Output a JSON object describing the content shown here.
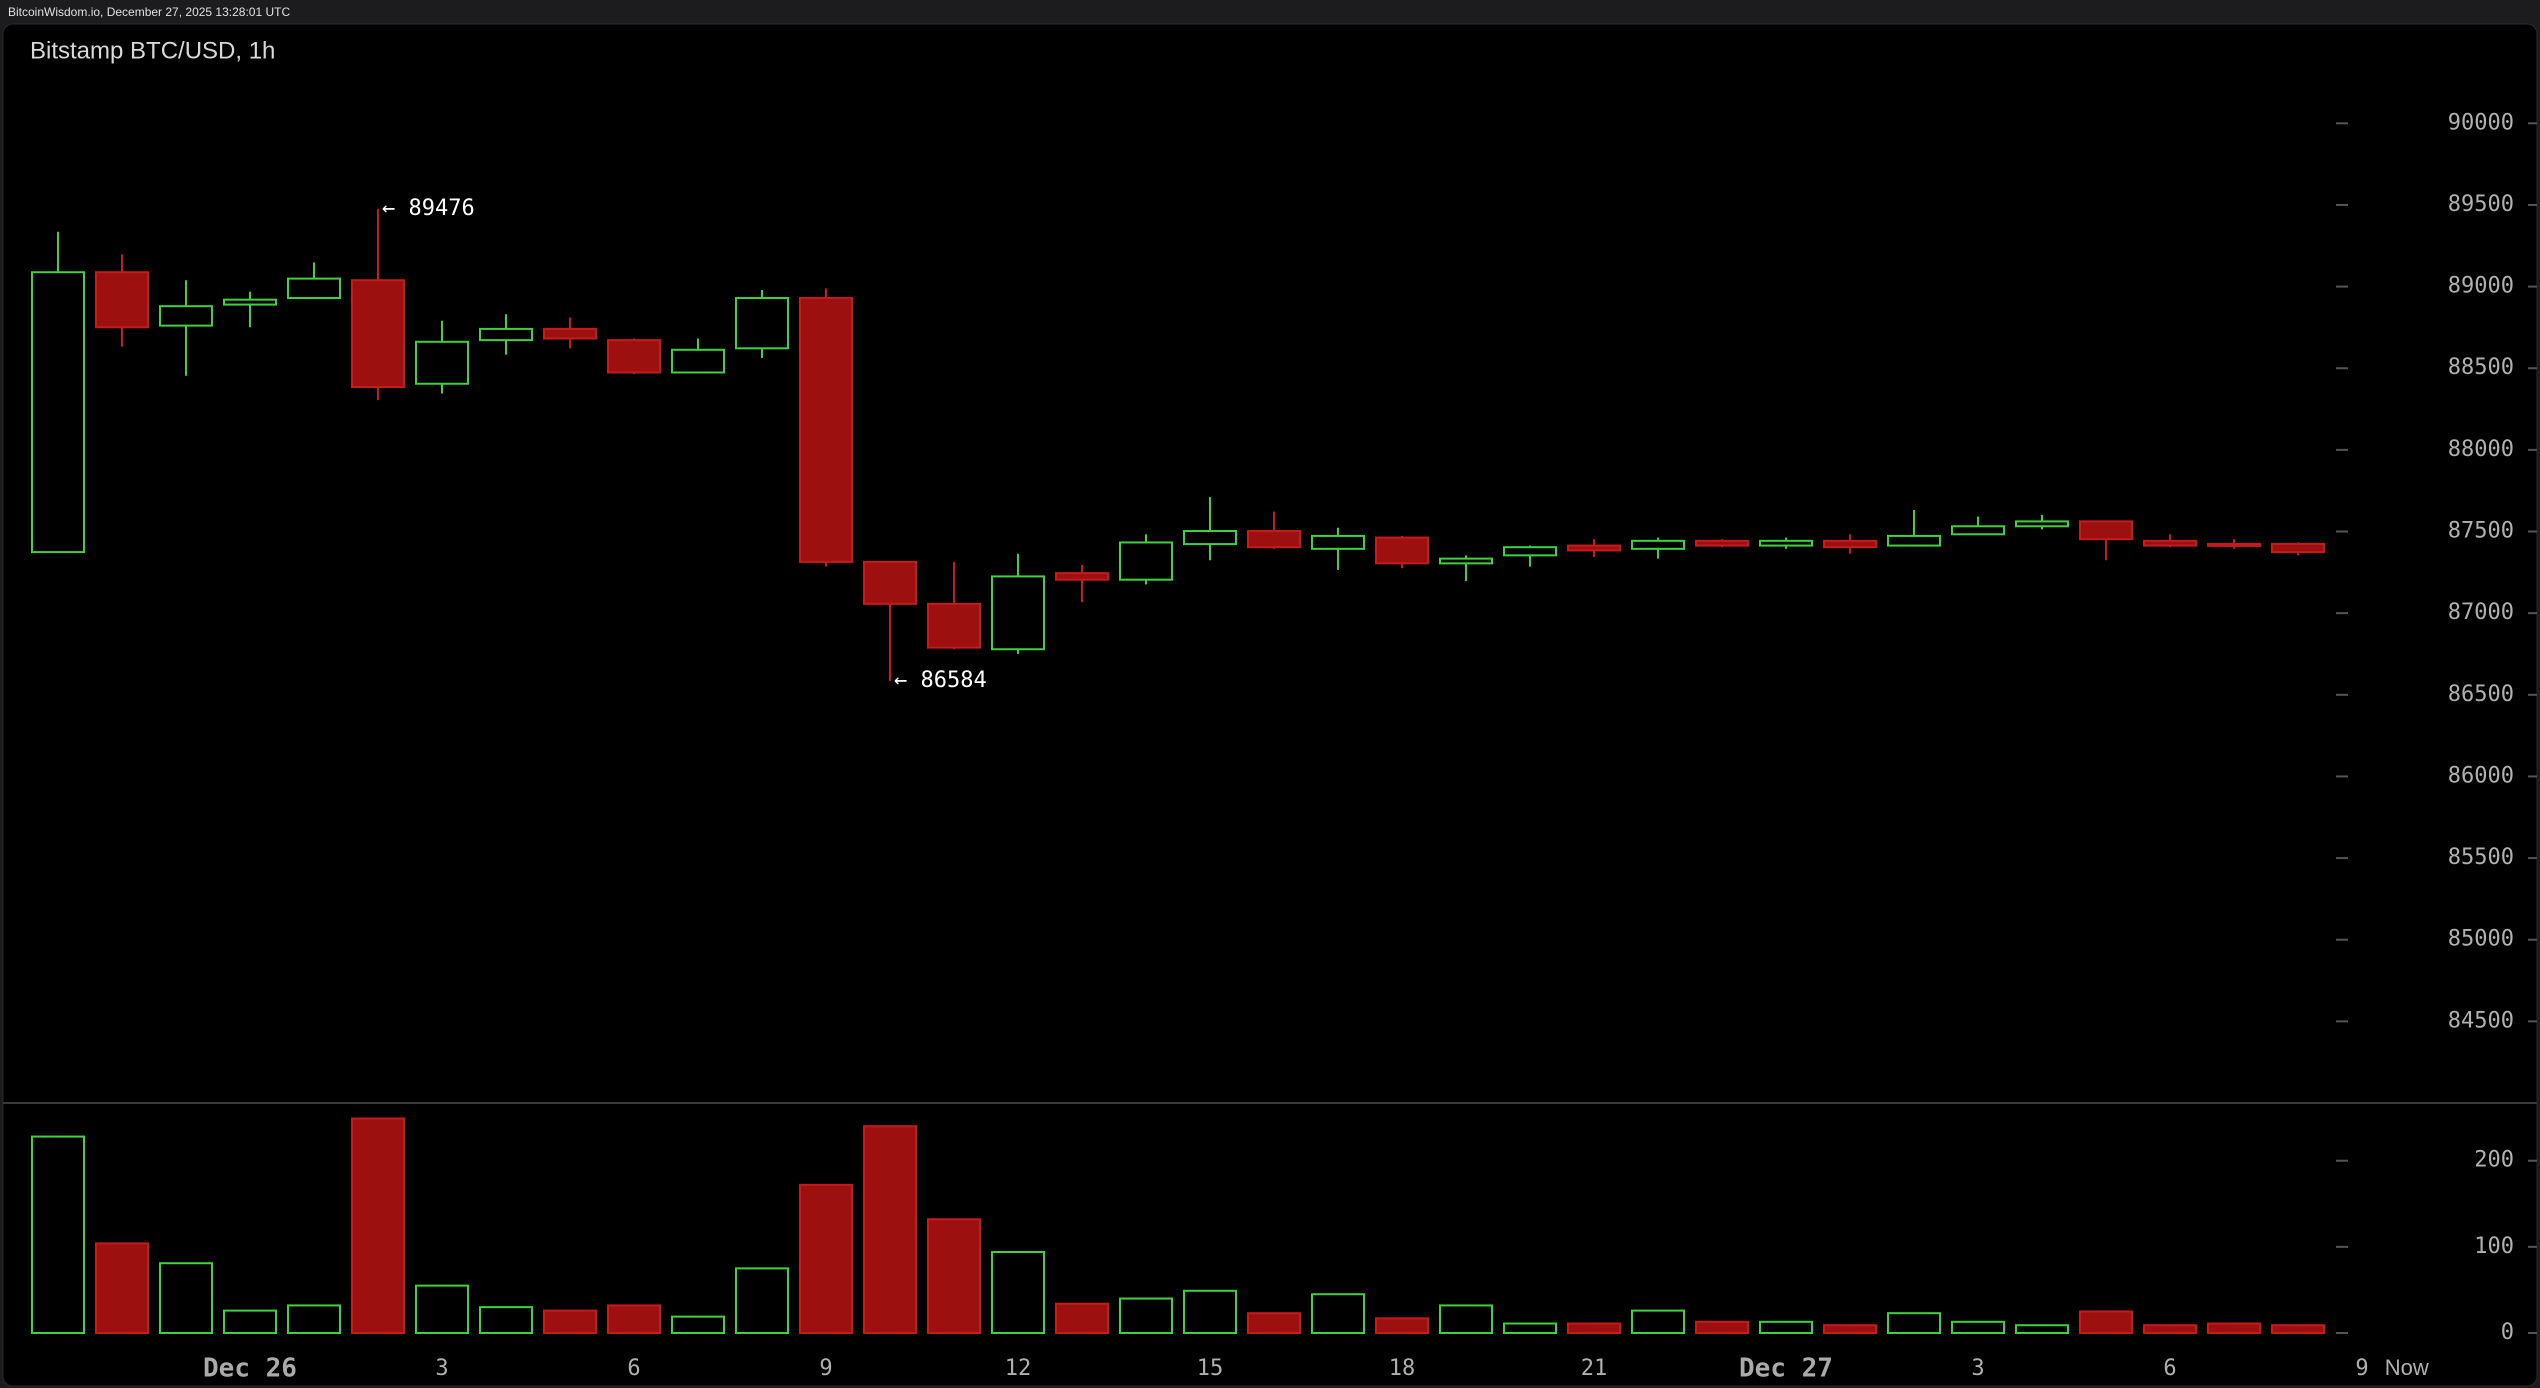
{
  "header": "BitcoinWisdom.io, December 27, 2025 13:28:01 UTC",
  "chart_data": [
    {
      "type": "candlestick",
      "title": "Bitstamp BTC/USD, 1h",
      "categories": [
        null,
        null,
        null,
        "Dec 26",
        null,
        null,
        "3",
        null,
        null,
        "6",
        null,
        null,
        "9",
        null,
        null,
        "12",
        null,
        null,
        "15",
        null,
        null,
        "18",
        null,
        null,
        "21",
        null,
        null,
        "Dec 27",
        null,
        null,
        "3",
        null,
        null,
        "6",
        null,
        null
      ],
      "extra_x_labels": [
        "9",
        "Now"
      ],
      "open": [
        87374,
        89088,
        88761,
        88890,
        88930,
        89039,
        88405,
        88672,
        88741,
        88672,
        88474,
        88622,
        88930,
        87314,
        87057,
        86779,
        87245,
        87205,
        87423,
        87503,
        87394,
        87463,
        87305,
        87354,
        87414,
        87394,
        87443,
        87414,
        87443,
        87414,
        87483,
        87532,
        87562,
        87443,
        87424,
        87424
      ],
      "high": [
        89336,
        89197,
        89039,
        88969,
        89148,
        89476,
        88791,
        88831,
        88811,
        88682,
        88682,
        88979,
        88989,
        87314,
        87314,
        87364,
        87295,
        87483,
        87711,
        87622,
        87523,
        87473,
        87354,
        87414,
        87453,
        87463,
        87453,
        87463,
        87483,
        87632,
        87592,
        87602,
        87562,
        87483,
        87453,
        87434
      ],
      "low": [
        87374,
        88632,
        88454,
        88751,
        88930,
        88305,
        88345,
        88583,
        88622,
        88464,
        88474,
        88563,
        87285,
        86584,
        86779,
        86750,
        87067,
        87176,
        87324,
        87394,
        87265,
        87275,
        87196,
        87285,
        87344,
        87334,
        87404,
        87394,
        87364,
        87414,
        87483,
        87513,
        87324,
        87404,
        87394,
        87354
      ],
      "close": [
        89088,
        88751,
        88880,
        88920,
        89049,
        88385,
        88662,
        88741,
        88682,
        88474,
        88613,
        88930,
        87314,
        87057,
        86789,
        87225,
        87205,
        87433,
        87503,
        87404,
        87473,
        87305,
        87334,
        87404,
        87384,
        87443,
        87414,
        87443,
        87404,
        87473,
        87532,
        87562,
        87453,
        87414,
        87414,
        87374
      ],
      "up_color": "#3fd13f",
      "down_color": "#9c1010",
      "annotations": [
        {
          "label": "← 89476",
          "value": 89476
        },
        {
          "label": "← 86584",
          "value": 86584
        }
      ],
      "ylim": [
        84000,
        90400
      ],
      "yticks": [
        84500,
        85000,
        85500,
        86000,
        86500,
        87000,
        87500,
        88000,
        88500,
        89000,
        89500,
        90000
      ]
    },
    {
      "type": "volume",
      "values": [
        228,
        104,
        81,
        26,
        32,
        249,
        55,
        30,
        26,
        32,
        19,
        75,
        172,
        240,
        132,
        94,
        34,
        40,
        49,
        23,
        45,
        17,
        32,
        11,
        11,
        26,
        13,
        13,
        9,
        23,
        13,
        9,
        25,
        9,
        11,
        9
      ],
      "ylim": [
        0,
        260
      ],
      "yticks": [
        0,
        100,
        200
      ]
    }
  ]
}
